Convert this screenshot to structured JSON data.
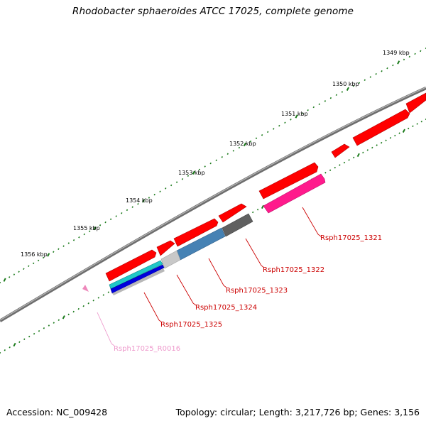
{
  "title": "Rhodobacter sphaeroides ATCC 17025, complete genome",
  "footer": {
    "accession": "Accession: NC_009428",
    "topology": "Topology: circular; Length: 3,217,726 bp; Genes: 3,156"
  },
  "colors": {
    "backbone": "#7a7a7a",
    "tick": "#1a7a1a",
    "cds": "#ff0000",
    "label_red": "#cc0000",
    "label_pink": "#ee99cc"
  },
  "tick_labels": [
    "1349 kbp",
    "1350 kbp",
    "1351 kbp",
    "1352 kbp",
    "1353 kbp",
    "1354 kbp",
    "1355 kbp",
    "1356 kbp"
  ],
  "feature_labels": {
    "f1321": "Rsph17025_1321",
    "f1322": "Rsph17025_1322",
    "f1323": "Rsph17025_1323",
    "f1324": "Rsph17025_1324",
    "f1325": "Rsph17025_1325",
    "r0016": "Rsph17025_R0016"
  }
}
